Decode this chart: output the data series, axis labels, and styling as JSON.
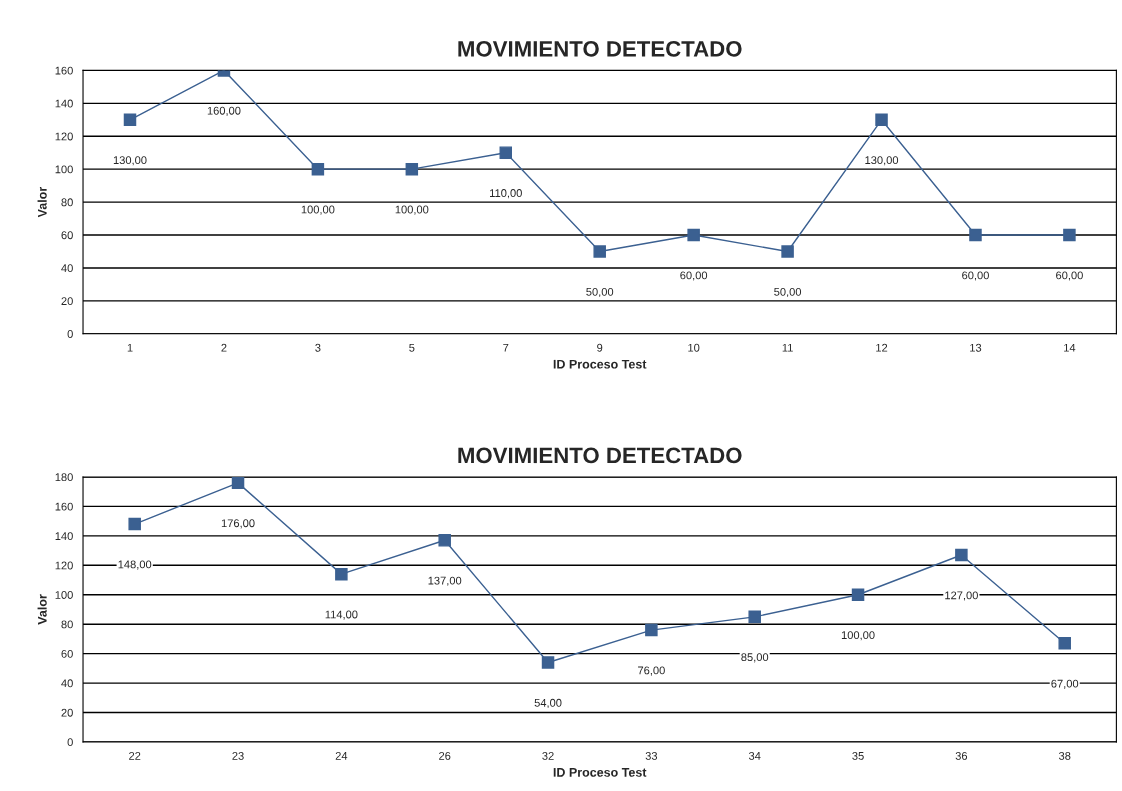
{
  "chart_data": [
    {
      "type": "line",
      "title": "MOVIMIENTO DETECTADO",
      "xlabel": "ID Proceso Test",
      "ylabel": "Valor",
      "categories": [
        "1",
        "2",
        "3",
        "5",
        "7",
        "9",
        "10",
        "11",
        "12",
        "13",
        "14"
      ],
      "series": [
        {
          "color": "#3b6091",
          "values": [
            130,
            160,
            100,
            100,
            110,
            50,
            60,
            50,
            130,
            60,
            60
          ],
          "value_labels": [
            "130,00",
            "160,00",
            "100,00",
            "100,00",
            "110,00",
            "50,00",
            "60,00",
            "50,00",
            "130,00",
            "60,00",
            "60,00"
          ]
        }
      ],
      "ylim": [
        0,
        160
      ],
      "yticks": [
        0,
        20,
        40,
        60,
        80,
        100,
        120,
        140,
        160
      ],
      "grid": "y",
      "marker": "square",
      "line_style": "solid",
      "legend": false
    },
    {
      "type": "line",
      "title": "MOVIMIENTO DETECTADO",
      "xlabel": "ID Proceso Test",
      "ylabel": "Valor",
      "categories": [
        "22",
        "23",
        "24",
        "26",
        "32",
        "33",
        "34",
        "35",
        "36",
        "38"
      ],
      "series": [
        {
          "color": "#3b6091",
          "values": [
            148,
            176,
            114,
            137,
            54,
            76,
            85,
            100,
            127,
            67
          ],
          "value_labels": [
            "148,00",
            "176,00",
            "114,00",
            "137,00",
            "54,00",
            "76,00",
            "85,00",
            "100,00",
            "127,00",
            "67,00"
          ]
        }
      ],
      "ylim": [
        0,
        180
      ],
      "yticks": [
        0,
        20,
        40,
        60,
        80,
        100,
        120,
        140,
        160,
        180
      ],
      "grid": "y",
      "marker": "square",
      "line_style": "solid",
      "legend": false
    }
  ]
}
